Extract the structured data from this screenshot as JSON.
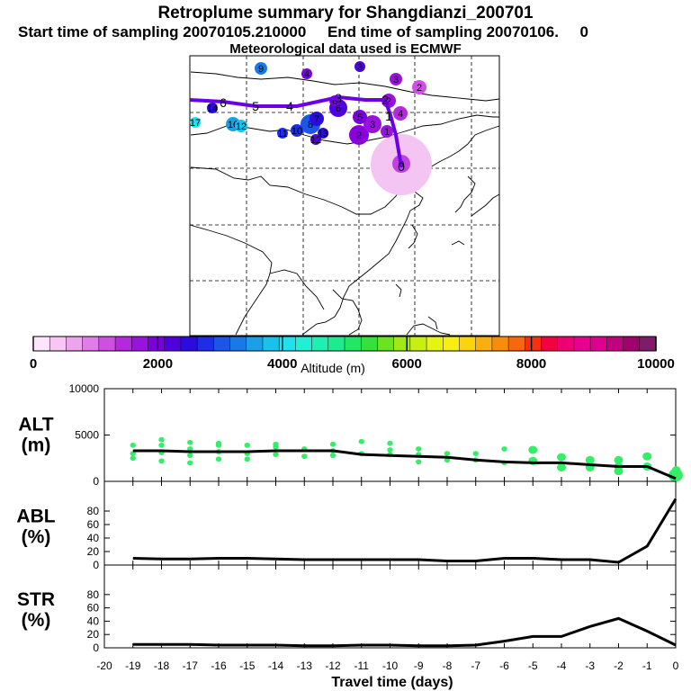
{
  "header": {
    "title": "Retroplume summary for Shangdianzi_200701",
    "sampling_line": "Start time of sampling 20070105.210000     End time of sampling 20070106.     0",
    "met_line": "Meteorological data used is ECMWF"
  },
  "colors": {
    "track": "#6a00e8",
    "scatter": "#33ee66",
    "line": "#000000",
    "source_halo": "#f2c2f2"
  },
  "map": {
    "track_day_labels": [
      "0",
      "1",
      "2",
      "3",
      "4",
      "5",
      "6"
    ],
    "cluster_labels": [
      "0",
      "1",
      "2",
      "3",
      "4",
      "5",
      "6",
      "7",
      "8",
      "9",
      "10",
      "11",
      "12",
      "13",
      "14",
      "15",
      "16",
      "17",
      "18",
      "19"
    ]
  },
  "colorbar": {
    "ticks": [
      "0",
      "2000",
      "4000",
      "6000",
      "8000",
      "10000"
    ],
    "label": "Altitude (m)",
    "colors": [
      "#fde6fb",
      "#f7c6f3",
      "#eea3ee",
      "#e07ee8",
      "#cf4fe3",
      "#b727df",
      "#9a12dd",
      "#7b00dd",
      "#5000df",
      "#2b0be0",
      "#1d2ee6",
      "#1b56e8",
      "#1879e8",
      "#1aa0e6",
      "#19c2ea",
      "#1ee2ee",
      "#1ff0d6",
      "#1ef0b4",
      "#1cec8e",
      "#20e864",
      "#34e23c",
      "#6ae41e",
      "#a0e816",
      "#c8ee12",
      "#e6f412",
      "#f8ef10",
      "#fcd40e",
      "#fcae0c",
      "#fa8c0c",
      "#f8660e",
      "#f73010",
      "#f20040",
      "#ef0070",
      "#ea0090",
      "#dc0090",
      "#c3007f",
      "#a1006e",
      "#7f1b68"
    ]
  },
  "chart_data": [
    {
      "type": "scatter",
      "panel": "ALT",
      "ylabel": [
        "ALT",
        "(m)"
      ],
      "ylim": [
        0,
        10000
      ],
      "yticks": [
        "0",
        "5000",
        "10000"
      ],
      "xlim": [
        -20,
        0
      ],
      "line": {
        "x": [
          0,
          -1,
          -2,
          -3,
          -4,
          -5,
          -6,
          -7,
          -8,
          -9,
          -10,
          -11,
          -12,
          -13,
          -14,
          -15,
          -16,
          -17,
          -18,
          -19
        ],
        "y": [
          300,
          1600,
          1600,
          1800,
          2000,
          2000,
          2100,
          2300,
          2600,
          2700,
          2800,
          2900,
          3300,
          3300,
          3300,
          3200,
          3200,
          3200,
          3300,
          3300
        ]
      },
      "points": [
        {
          "x": 0,
          "y": 650
        },
        {
          "x": -0.05,
          "y": 900
        },
        {
          "x": 0.02,
          "y": 1200
        },
        {
          "x": -1,
          "y": 1600
        },
        {
          "x": -1,
          "y": 2700
        },
        {
          "x": -2,
          "y": 1600
        },
        {
          "x": -2,
          "y": 2300
        },
        {
          "x": -2,
          "y": 1100
        },
        {
          "x": -3,
          "y": 1500
        },
        {
          "x": -3,
          "y": 2300
        },
        {
          "x": -4,
          "y": 1500
        },
        {
          "x": -4,
          "y": 2600
        },
        {
          "x": -5,
          "y": 2200
        },
        {
          "x": -5,
          "y": 3400
        },
        {
          "x": -6,
          "y": 2000
        },
        {
          "x": -6,
          "y": 3500
        },
        {
          "x": -7,
          "y": 2300
        },
        {
          "x": -7,
          "y": 3000
        },
        {
          "x": -8,
          "y": 2300
        },
        {
          "x": -8,
          "y": 3000
        },
        {
          "x": -9,
          "y": 2100
        },
        {
          "x": -9,
          "y": 2900
        },
        {
          "x": -9,
          "y": 3500
        },
        {
          "x": -10,
          "y": 2900
        },
        {
          "x": -10,
          "y": 4100
        },
        {
          "x": -11,
          "y": 3000
        },
        {
          "x": -11,
          "y": 4300
        },
        {
          "x": -12,
          "y": 4000
        },
        {
          "x": -12,
          "y": 3300
        },
        {
          "x": -13,
          "y": 3500
        },
        {
          "x": -13,
          "y": 2700
        },
        {
          "x": -14,
          "y": 3700
        },
        {
          "x": -14,
          "y": 2900
        },
        {
          "x": -15,
          "y": 3000
        },
        {
          "x": -15,
          "y": 3900
        },
        {
          "x": -15,
          "y": 2400
        },
        {
          "x": -16,
          "y": 3200
        },
        {
          "x": -16,
          "y": 2400
        },
        {
          "x": -16,
          "y": 3900
        },
        {
          "x": -17,
          "y": 2000
        },
        {
          "x": -17,
          "y": 2800
        },
        {
          "x": -17,
          "y": 3500
        },
        {
          "x": -17,
          "y": 4200
        },
        {
          "x": -18,
          "y": 2200
        },
        {
          "x": -18,
          "y": 3100
        },
        {
          "x": -18,
          "y": 3900
        },
        {
          "x": -18,
          "y": 4500
        },
        {
          "x": -19,
          "y": 3000
        },
        {
          "x": -19,
          "y": 2500
        },
        {
          "x": -19,
          "y": 3900
        },
        {
          "x": -16,
          "y": 4100
        },
        {
          "x": -14,
          "y": 4000
        },
        {
          "x": -12,
          "y": 2800
        },
        {
          "x": -10,
          "y": 3400
        }
      ]
    },
    {
      "type": "line",
      "panel": "ABL",
      "ylabel": [
        "ABL",
        "(%)"
      ],
      "ylim": [
        0,
        100
      ],
      "yticks": [
        "0",
        "20",
        "40",
        "60",
        "80"
      ],
      "x": [
        0,
        -1,
        -2,
        -3,
        -4,
        -5,
        -6,
        -7,
        -8,
        -9,
        -10,
        -11,
        -12,
        -13,
        -14,
        -15,
        -16,
        -17,
        -18,
        -19
      ],
      "y": [
        98,
        28,
        4,
        8,
        8,
        10,
        10,
        6,
        6,
        8,
        8,
        8,
        8,
        8,
        9,
        10,
        10,
        9,
        9,
        10
      ]
    },
    {
      "type": "line",
      "panel": "STR",
      "ylabel": [
        "STR",
        "(%)"
      ],
      "ylim": [
        0,
        100
      ],
      "yticks": [
        "0",
        "20",
        "40",
        "60",
        "80"
      ],
      "x": [
        0,
        -1,
        -2,
        -3,
        -4,
        -5,
        -6,
        -7,
        -8,
        -9,
        -10,
        -11,
        -12,
        -13,
        -14,
        -15,
        -16,
        -17,
        -18,
        -19
      ],
      "y": [
        4,
        25,
        44,
        32,
        17,
        17,
        10,
        4,
        3,
        3,
        4,
        4,
        3,
        3,
        4,
        4,
        4,
        5,
        5,
        5
      ],
      "xticks": [
        "-20",
        "-19",
        "-18",
        "-17",
        "-16",
        "-15",
        "-14",
        "-13",
        "-12",
        "-11",
        "-10",
        "-9",
        "-8",
        "-7",
        "-6",
        "-5",
        "-4",
        "-3",
        "-2",
        "-1",
        "0"
      ],
      "xlabel": "Travel time (days)"
    }
  ]
}
